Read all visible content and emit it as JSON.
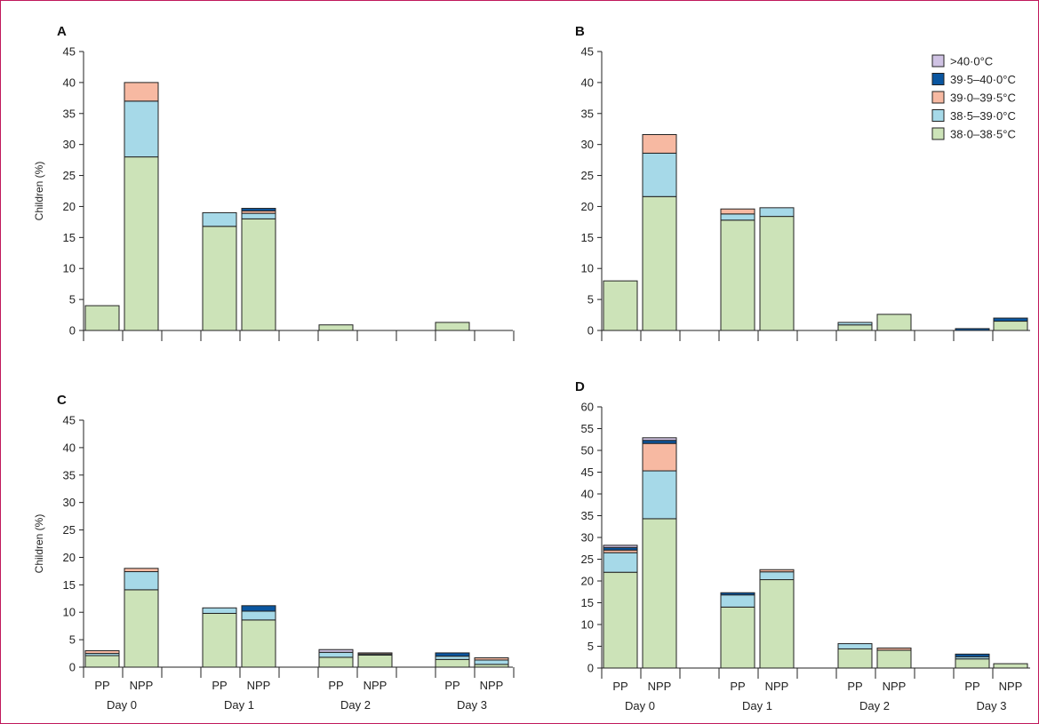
{
  "colors": {
    "frame": "#c0185b",
    "axis": "#222222",
    "bar_stroke": "#222222"
  },
  "legend": [
    {
      "label": ">40·0°C",
      "color": "#cfc2e3"
    },
    {
      "label": "39·5–40·0°C",
      "color": "#0a56a0"
    },
    {
      "label": "39·0–39·5°C",
      "color": "#f7b9a2"
    },
    {
      "label": "38·5–39·0°C",
      "color": "#a6d9e8"
    },
    {
      "label": "38·0–38·5°C",
      "color": "#cce3b8"
    }
  ],
  "chart_data": [
    {
      "panel": "A",
      "type": "bar",
      "stacked": true,
      "ylabel": "Children (%)",
      "ylim": [
        0,
        45
      ],
      "yticks": [
        0,
        5,
        10,
        15,
        20,
        25,
        30,
        35,
        40,
        45
      ],
      "x_sub_labels": [],
      "x_group_labels": [],
      "bars": [
        {
          "segments": [
            4,
            0,
            0,
            0,
            0
          ]
        },
        {
          "segments": [
            28,
            9,
            3,
            0,
            0
          ]
        },
        {
          "segments": [
            16.8,
            2.2,
            0,
            0,
            0
          ]
        },
        {
          "segments": [
            18,
            0.9,
            0.4,
            0.4,
            0
          ]
        },
        {
          "segments": [
            0.9,
            0,
            0,
            0,
            0
          ]
        },
        {
          "segments": [
            0,
            0,
            0,
            0,
            0
          ]
        },
        {
          "segments": [
            1.3,
            0,
            0,
            0,
            0
          ]
        },
        {
          "segments": [
            0,
            0,
            0,
            0,
            0
          ]
        }
      ]
    },
    {
      "panel": "B",
      "type": "bar",
      "stacked": true,
      "ylabel": "",
      "ylim": [
        0,
        45
      ],
      "yticks": [
        0,
        5,
        10,
        15,
        20,
        25,
        30,
        35,
        40,
        45
      ],
      "x_sub_labels": [],
      "x_group_labels": [],
      "show_legend": true,
      "bars": [
        {
          "segments": [
            8,
            0,
            0,
            0,
            0
          ]
        },
        {
          "segments": [
            21.6,
            7,
            3,
            0,
            0
          ]
        },
        {
          "segments": [
            0,
            0,
            0,
            0,
            0
          ]
        },
        {
          "segments": [
            17.8,
            1,
            0.8,
            0,
            0
          ]
        },
        {
          "segments": [
            18.4,
            1.4,
            0,
            0,
            0
          ]
        },
        {
          "segments": [
            0,
            0,
            0,
            0,
            0
          ]
        },
        {
          "segments": [
            0.9,
            0.4,
            0,
            0,
            0
          ]
        },
        {
          "segments": [
            2.6,
            0,
            0,
            0,
            0
          ]
        },
        {
          "segments": [
            0,
            0,
            0,
            0,
            0
          ]
        },
        {
          "segments": [
            0,
            0,
            0,
            0.3,
            0
          ]
        },
        {
          "segments": [
            1.5,
            0,
            0,
            0.5,
            0
          ]
        }
      ]
    },
    {
      "panel": "C",
      "type": "bar",
      "stacked": true,
      "ylabel": "Children (%)",
      "ylim": [
        0,
        45
      ],
      "yticks": [
        0,
        5,
        10,
        15,
        20,
        25,
        30,
        35,
        40,
        45
      ],
      "x_sub_labels": [
        "PP",
        "NPP",
        "PP",
        "NPP",
        "PP",
        "NPP",
        "PP",
        "NPP"
      ],
      "x_group_labels": [
        "Day 0",
        "Day 1",
        "Day 2",
        "Day 3"
      ],
      "bars": [
        {
          "segments": [
            2.1,
            0.4,
            0.5,
            0,
            0
          ]
        },
        {
          "segments": [
            14.1,
            3.3,
            0.6,
            0,
            0
          ]
        },
        {
          "segments": [
            9.8,
            1,
            0,
            0,
            0
          ]
        },
        {
          "segments": [
            8.6,
            1.6,
            0,
            1,
            0
          ]
        },
        {
          "segments": [
            1.8,
            0.9,
            0,
            0,
            0.5
          ]
        },
        {
          "segments": [
            2.2,
            0.2,
            0.2,
            0,
            0
          ]
        },
        {
          "segments": [
            1.4,
            0.6,
            0,
            0.6,
            0
          ]
        },
        {
          "segments": [
            0.5,
            0.8,
            0.4,
            0,
            0
          ]
        }
      ]
    },
    {
      "panel": "D",
      "type": "bar",
      "stacked": true,
      "ylabel": "",
      "ylim": [
        0,
        60
      ],
      "yticks": [
        0,
        5,
        10,
        15,
        20,
        25,
        30,
        35,
        40,
        45,
        50,
        55,
        60
      ],
      "x_sub_labels": [
        "PP",
        "NPP",
        "PP",
        "NPP",
        "PP",
        "NPP",
        "PP",
        "NPP"
      ],
      "x_group_labels": [
        "Day 0",
        "Day 1",
        "Day 2",
        "Day 3"
      ],
      "bars": [
        {
          "segments": [
            22,
            4.5,
            0.6,
            0.6,
            0.5
          ]
        },
        {
          "segments": [
            34.3,
            11,
            6.3,
            0.7,
            0.6
          ]
        },
        {
          "segments": [
            14,
            2.8,
            0,
            0.5,
            0
          ]
        },
        {
          "segments": [
            20.3,
            1.8,
            0.5,
            0,
            0
          ]
        },
        {
          "segments": [
            4.4,
            1.2,
            0,
            0,
            0
          ]
        },
        {
          "segments": [
            4.1,
            0,
            0.5,
            0,
            0
          ]
        },
        {
          "segments": [
            2.1,
            0.5,
            0,
            0.6,
            0
          ]
        },
        {
          "segments": [
            1,
            0,
            0,
            0,
            0
          ]
        }
      ]
    }
  ]
}
